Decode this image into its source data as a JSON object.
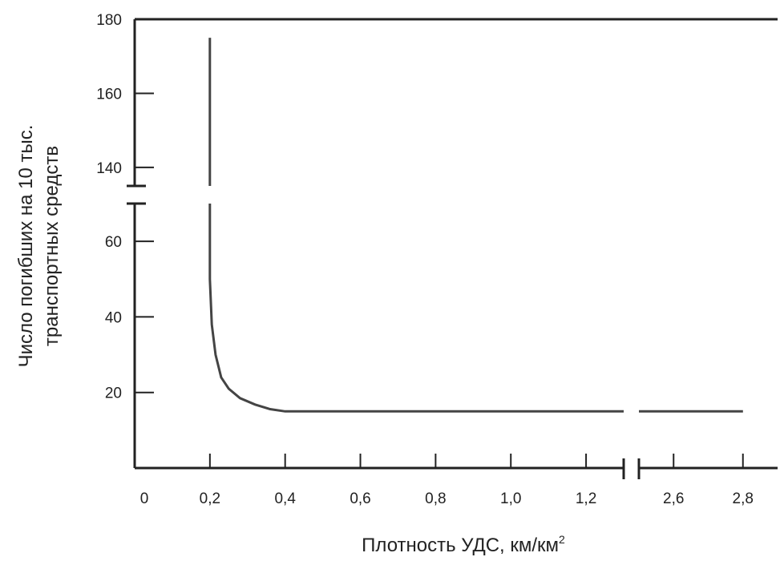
{
  "chart_data": {
    "type": "line",
    "title": "",
    "xlabel": "Плотность УДС, км/км",
    "xlabel_sup": "2",
    "ylabel_line1": "Число погибших на 10 тыс.",
    "ylabel_line2": "транспортных средств",
    "x_ticks": [
      {
        "value": 0,
        "label": "0"
      },
      {
        "value": 0.2,
        "label": "0,2"
      },
      {
        "value": 0.4,
        "label": "0,4"
      },
      {
        "value": 0.6,
        "label": "0,6"
      },
      {
        "value": 0.8,
        "label": "0,8"
      },
      {
        "value": 1.0,
        "label": "1,0"
      },
      {
        "value": 1.2,
        "label": "1,2"
      },
      {
        "value": 2.6,
        "label": "2,6"
      },
      {
        "value": 2.8,
        "label": "2,8"
      }
    ],
    "y_ticks": [
      {
        "value": 20,
        "label": "20"
      },
      {
        "value": 40,
        "label": "40"
      },
      {
        "value": 60,
        "label": "60"
      },
      {
        "value": 140,
        "label": "140"
      },
      {
        "value": 160,
        "label": "160"
      },
      {
        "value": 180,
        "label": "180"
      }
    ],
    "x_segments": [
      {
        "range": [
          0,
          1.3
        ]
      },
      {
        "range": [
          2.5,
          2.9
        ]
      }
    ],
    "y_segments": [
      {
        "range": [
          0,
          70
        ]
      },
      {
        "range": [
          135,
          180
        ]
      }
    ],
    "x_break": [
      1.3,
      2.5
    ],
    "y_break": [
      70,
      135
    ],
    "series": [
      {
        "points": [
          [
            0.2,
            175
          ],
          [
            0.2,
            160
          ],
          [
            0.2,
            135
          ],
          [
            0.2,
            70
          ],
          [
            0.2,
            50
          ],
          [
            0.205,
            38
          ],
          [
            0.215,
            30
          ],
          [
            0.23,
            24
          ],
          [
            0.25,
            21
          ],
          [
            0.28,
            18.5
          ],
          [
            0.32,
            16.8
          ],
          [
            0.36,
            15.6
          ],
          [
            0.4,
            15
          ],
          [
            0.6,
            15
          ],
          [
            0.8,
            15
          ],
          [
            1.0,
            15
          ],
          [
            1.2,
            15
          ],
          [
            1.3,
            15
          ],
          [
            2.5,
            15
          ],
          [
            2.6,
            15
          ],
          [
            2.8,
            15
          ]
        ]
      }
    ]
  }
}
